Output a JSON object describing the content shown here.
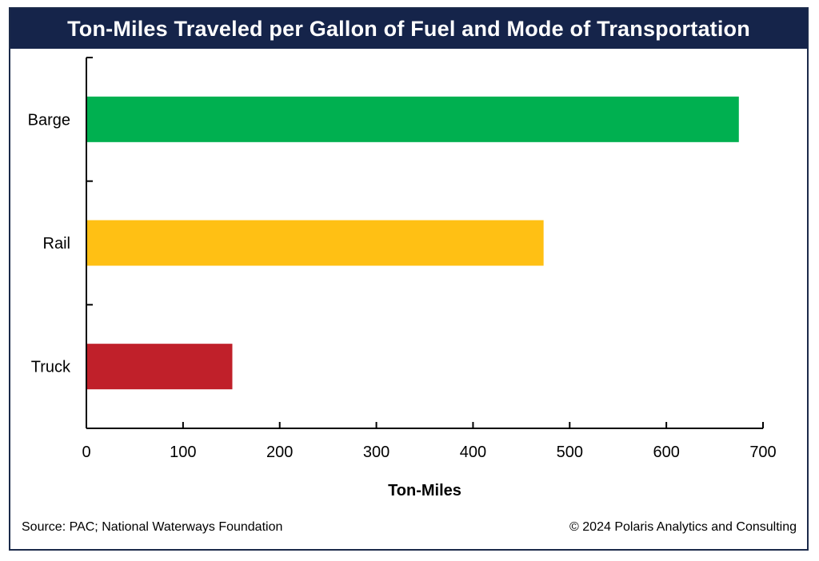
{
  "chart_data": {
    "type": "bar",
    "orientation": "horizontal",
    "title": "Ton-Miles Traveled per Gallon of Fuel and Mode of Transportation",
    "xlabel": "Ton-Miles",
    "ylabel": "",
    "categories": [
      "Barge",
      "Rail",
      "Truck"
    ],
    "values": [
      675,
      473,
      151
    ],
    "colors": [
      "#00b050",
      "#ffc014",
      "#c0202a"
    ],
    "xlim": [
      0,
      700
    ],
    "xticks": [
      "0",
      "100",
      "200",
      "300",
      "400",
      "500",
      "600",
      "700"
    ],
    "grid": false,
    "legend": "none"
  },
  "footer": {
    "source": "Source: PAC; National Waterways Foundation",
    "copyright": "© 2024 Polaris Analytics and Consulting"
  },
  "colors": {
    "title_bar": "#15244a",
    "axis": "#000000"
  }
}
